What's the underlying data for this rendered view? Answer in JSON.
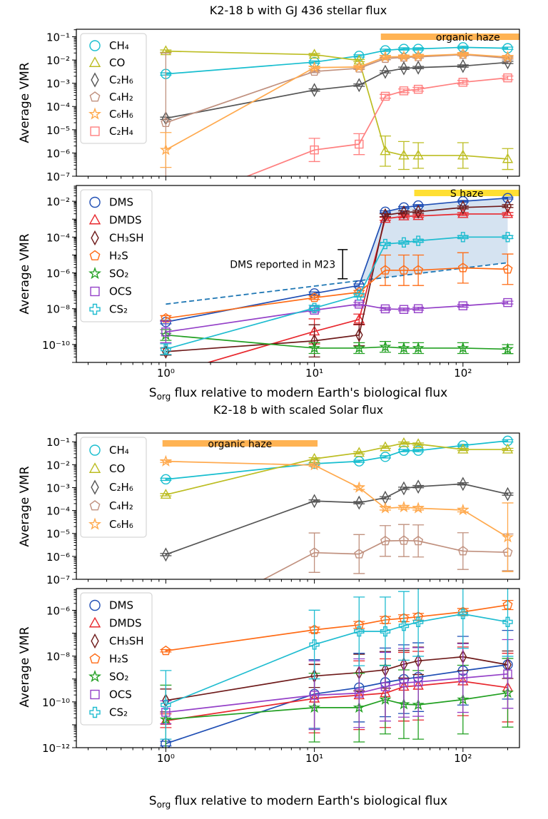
{
  "chart_data": [
    {
      "type": "line",
      "title": "K2-18 b with GJ 436 stellar flux",
      "ylabel": "Average VMR",
      "xscale": "log",
      "yscale": "log",
      "xlim": [
        0.25,
        240
      ],
      "ylim": [
        1e-07,
        0.21
      ],
      "xticks": [
        "10⁰",
        "10¹",
        "10²"
      ],
      "yticks": [
        "10⁻¹",
        "10⁻²",
        "10⁻³",
        "10⁻⁴",
        "10⁻⁵",
        "10⁻⁶",
        "10⁻⁷"
      ],
      "legend": "upper left",
      "x": [
        1,
        10,
        20,
        30,
        40,
        50,
        100,
        200
      ],
      "bands": [
        {
          "label": "organic haze",
          "x": [
            28,
            240
          ],
          "color": "#ffa028"
        }
      ],
      "series": [
        {
          "name": "CH₄",
          "color": "#17becf",
          "marker": "circle",
          "values": [
            0.0025,
            0.0081,
            0.015,
            0.026,
            0.03,
            0.03,
            0.035,
            0.032
          ],
          "yerr_dex": [
            0.05,
            0.05,
            0.05,
            0.05,
            0.05,
            0.05,
            0.05,
            0.05
          ]
        },
        {
          "name": "CO",
          "color": "#bcbd22",
          "marker": "triangle",
          "values": [
            0.024,
            0.017,
            0.0095,
            1.2e-06,
            7.8e-07,
            7.8e-07,
            7.8e-07,
            5.5e-07
          ],
          "yerr_dex": [
            0.05,
            0.05,
            0.05,
            0.65,
            0.6,
            0.55,
            0.55,
            0.45
          ]
        },
        {
          "name": "C₂H₆",
          "color": "#555555",
          "marker": "diamond",
          "values": [
            3.1e-05,
            0.00051,
            0.00083,
            0.0031,
            0.0044,
            0.0047,
            0.0055,
            0.0079
          ],
          "yerr_dex": [
            0.05,
            0.05,
            0.05,
            0.05,
            0.05,
            0.05,
            0.05,
            0.05
          ]
        },
        {
          "name": "C₄H₂",
          "color": "#c0907e",
          "marker": "pentagon",
          "values": [
            2e-05,
            0.0032,
            0.0044,
            0.0115,
            0.013,
            0.0135,
            0.017,
            0.012
          ],
          "yerr_dex": [
            3,
            0.05,
            0.05,
            0.05,
            0.05,
            0.05,
            0.05,
            0.05
          ]
        },
        {
          "name": "C₆H₆",
          "color": "#ffa94d",
          "marker": "star",
          "values": [
            1.35e-06,
            0.0047,
            0.005,
            0.0135,
            0.014,
            0.015,
            0.018,
            0.0135
          ],
          "yerr_dex": [
            0.75,
            0.05,
            0.05,
            0.05,
            0.05,
            0.05,
            0.05,
            0.05
          ]
        },
        {
          "name": "C₂H₄",
          "color": "#ff7f7f",
          "marker": "square",
          "values": [
            4.2e-09,
            1.35e-06,
            2.4e-06,
            0.000275,
            0.00047,
            0.00055,
            0.0011,
            0.0017
          ],
          "yerr_dex": [
            0,
            0.5,
            0.45,
            0.08,
            0.08,
            0.08,
            0.08,
            0.08
          ]
        }
      ]
    },
    {
      "type": "line",
      "ylabel": "Average VMR",
      "xlabel": {
        "symbol": "S",
        "subscript": "org",
        "text": " flux relative to modern Earth's biological flux"
      },
      "xscale": "log",
      "yscale": "log",
      "xlim": [
        0.25,
        240
      ],
      "ylim": [
        1e-10,
        0.76
      ],
      "xticks": [
        "10⁰",
        "10¹",
        "10²"
      ],
      "yticks": [
        "10⁻²",
        "10⁻⁴",
        "10⁻⁶",
        "10⁻⁸",
        "10⁻¹⁰"
      ],
      "legend": "upper left",
      "x": [
        1,
        10,
        20,
        30,
        40,
        50,
        100,
        200
      ],
      "bands": [
        {
          "label": "S haze",
          "x": [
            47,
            240
          ],
          "color": "#ffd700"
        }
      ],
      "reference_line": {
        "label": "DMS reported in M23",
        "x": [
          1,
          200
        ],
        "values": [
          1.8e-07,
          3.7e-05
        ],
        "color": "#1f77b4",
        "style": "dashed",
        "bracket_x": 15.5,
        "bracket_range": [
          0.0002,
          4.7e-06
        ]
      },
      "shaded_region_color": "#b9d1e8",
      "series": [
        {
          "name": "DMS",
          "color": "#1f4eb4",
          "marker": "circle",
          "values": [
            1.8e-08,
            7.1e-07,
            2e-06,
            0.026,
            0.045,
            0.058,
            0.1,
            0.15
          ],
          "yerr_dex": [
            0.1,
            0.08,
            0.08,
            0.05,
            0.05,
            0.05,
            0.05,
            0.05
          ]
        },
        {
          "name": "DMDS",
          "color": "#e8282e",
          "marker": "triangle",
          "values": [
            2e-11,
            5.4e-09,
            2.5e-08,
            0.0105,
            0.0145,
            0.015,
            0.0195,
            0.0195
          ],
          "yerr_dex": [
            0,
            0.7,
            0.3,
            0.08,
            0.08,
            0.08,
            0.08,
            0.08
          ]
        },
        {
          "name": "CH₃SH",
          "color": "#6e1a1a",
          "marker": "diamond",
          "values": [
            4e-10,
            1.6e-09,
            3.4e-09,
            0.0166,
            0.024,
            0.026,
            0.045,
            0.054
          ],
          "yerr_dex": [
            0.2,
            0.9,
            0.6,
            0.08,
            0.08,
            0.08,
            0.08,
            0.08
          ]
        },
        {
          "name": "H₂S",
          "color": "#ff6b15",
          "marker": "pentagon",
          "values": [
            2.9e-08,
            4.1e-07,
            8.3e-07,
            1.4e-05,
            1.4e-05,
            1.4e-05,
            1.9e-05,
            1.6e-05
          ],
          "yerr_dex": [
            0.15,
            0.1,
            0.1,
            0.85,
            0.85,
            0.85,
            0.85,
            0.85
          ]
        },
        {
          "name": "SO₂",
          "color": "#22a022",
          "marker": "star",
          "values": [
            3.4e-09,
            6.3e-10,
            6.3e-10,
            7.4e-10,
            6.3e-10,
            6.3e-10,
            6.3e-10,
            5.5e-10
          ],
          "yerr_dex": [
            0.3,
            0.3,
            0.3,
            0.3,
            0.3,
            0.3,
            0.3,
            0.25
          ]
        },
        {
          "name": "OCS",
          "color": "#9440c8",
          "marker": "square",
          "values": [
            5e-09,
            8.3e-08,
            1.8e-07,
            9.8e-08,
            9.1e-08,
            1e-07,
            1.45e-07,
            2.2e-07
          ],
          "yerr_dex": [
            0.6,
            0.1,
            0.1,
            0.08,
            0.08,
            0.08,
            0.08,
            0.08
          ]
        },
        {
          "name": "CS₂",
          "color": "#1fbcd0",
          "marker": "plus",
          "values": [
            5.5e-10,
            1.1e-07,
            5.6e-07,
            0.00041,
            0.0005,
            0.00062,
            0.001,
            0.001
          ],
          "yerr_dex": [
            0.3,
            0.15,
            0.1,
            0.08,
            0.08,
            0.08,
            0.08,
            0.08
          ]
        }
      ]
    },
    {
      "type": "line",
      "title": "K2-18 b with scaled Solar flux",
      "ylabel": "Average VMR",
      "xscale": "log",
      "yscale": "log",
      "xlim": [
        0.25,
        240
      ],
      "ylim": [
        1e-07,
        0.24
      ],
      "xticks": [
        "10⁰",
        "10¹",
        "10²"
      ],
      "yticks": [
        "10⁻¹",
        "10⁻²",
        "10⁻³",
        "10⁻⁴",
        "10⁻⁵",
        "10⁻⁶",
        "10⁻⁷"
      ],
      "legend": "upper left",
      "x": [
        1,
        10,
        20,
        30,
        40,
        50,
        100,
        200
      ],
      "bands": [
        {
          "label": "organic haze",
          "x": [
            0.95,
            10.5
          ],
          "color": "#ffa028"
        }
      ],
      "series": [
        {
          "name": "CH₄",
          "color": "#17becf",
          "marker": "circle",
          "values": [
            0.0023,
            0.011,
            0.014,
            0.022,
            0.041,
            0.041,
            0.069,
            0.11
          ],
          "yerr_dex": [
            0.05,
            0.05,
            0.05,
            0.05,
            0.05,
            0.05,
            0.05,
            0.05
          ]
        },
        {
          "name": "CO",
          "color": "#bcbd22",
          "marker": "triangle",
          "values": [
            0.00049,
            0.018,
            0.033,
            0.058,
            0.087,
            0.079,
            0.046,
            0.046
          ],
          "yerr_dex": [
            0.05,
            0.05,
            0.05,
            0.05,
            0.05,
            0.05,
            0.05,
            0.05
          ]
        },
        {
          "name": "C₂H₆",
          "color": "#555555",
          "marker": "diamond",
          "values": [
            1.2e-06,
            0.00026,
            0.00022,
            0.00036,
            0.00093,
            0.0011,
            0.00145,
            0.00052
          ],
          "yerr_dex": [
            0.05,
            0.05,
            0.05,
            0.05,
            0.05,
            0.05,
            0.05,
            0.05
          ]
        },
        {
          "name": "C₄H₂",
          "color": "#c0907e",
          "marker": "pentagon",
          "values": [
            5.6e-10,
            1.45e-06,
            1.26e-06,
            4.7e-06,
            4.9e-06,
            4.7e-06,
            1.7e-06,
            1.5e-06
          ],
          "yerr_dex": [
            0,
            0.86,
            0.85,
            0.67,
            0.7,
            0.7,
            0.8,
            0.8
          ]
        },
        {
          "name": "C₆H₆",
          "color": "#ffa94d",
          "marker": "star",
          "values": [
            0.014,
            0.0095,
            0.001,
            0.000126,
            0.00014,
            0.000126,
            0.000105,
            6.8e-06
          ],
          "yerr_dex": [
            0.05,
            0.05,
            0.08,
            0.08,
            0.08,
            0.08,
            0.08,
            1.5
          ]
        }
      ]
    },
    {
      "type": "line",
      "ylabel": "Average VMR",
      "xlabel": {
        "symbol": "S",
        "subscript": "org",
        "text": " flux relative to modern Earth's biological flux"
      },
      "xscale": "log",
      "yscale": "log",
      "xlim": [
        0.25,
        240
      ],
      "ylim": [
        1e-12,
        8.9e-06
      ],
      "xticks": [
        "10⁰",
        "10¹",
        "10²"
      ],
      "yticks": [
        "10⁻⁶",
        "10⁻⁸",
        "10⁻¹⁰",
        "10⁻¹²"
      ],
      "legend": "upper left",
      "x": [
        1,
        10,
        20,
        30,
        40,
        50,
        100,
        200
      ],
      "series": [
        {
          "name": "DMS",
          "color": "#1f4eb4",
          "marker": "circle",
          "values": [
            1.5e-12,
            2.2e-10,
            4.2e-10,
            7.1e-10,
            9.8e-10,
            1.2e-09,
            2.3e-09,
            4.2e-09
          ],
          "yerr_dex": [
            0.1,
            1.5,
            1.5,
            1.5,
            1.5,
            1.5,
            1.5,
            1.5
          ]
        },
        {
          "name": "DMDS",
          "color": "#e8282e",
          "marker": "triangle",
          "values": [
            1.5e-11,
            1.4e-10,
            1.95e-10,
            2.4e-10,
            4.6e-10,
            5.1e-10,
            7.9e-10,
            4.2e-10
          ],
          "yerr_dex": [
            0.3,
            1.5,
            1.5,
            1.5,
            1.5,
            1.5,
            1.5,
            1.5
          ]
        },
        {
          "name": "CH₃SH",
          "color": "#6e1a1a",
          "marker": "diamond",
          "values": [
            1.15e-10,
            1.35e-09,
            1.9e-09,
            2.5e-09,
            4.4e-09,
            6.2e-09,
            9.3e-09,
            4.2e-09
          ],
          "yerr_dex": [
            0.5,
            0.5,
            0.8,
            0.8,
            0.6,
            0.6,
            0.6,
            0.6
          ]
        },
        {
          "name": "H₂S",
          "color": "#ff6b15",
          "marker": "pentagon",
          "values": [
            1.7e-08,
            1.4e-07,
            2.3e-07,
            3.8e-07,
            4.5e-07,
            5.2e-07,
            8.5e-07,
            1.7e-06
          ],
          "yerr_dex": [
            0.05,
            0.12,
            0.15,
            0.15,
            0.15,
            0.15,
            0.15,
            0.2
          ]
        },
        {
          "name": "SO₂",
          "color": "#22a022",
          "marker": "star",
          "values": [
            1.7e-11,
            5.6e-11,
            5.6e-11,
            1.26e-10,
            7.9e-11,
            7.4e-11,
            1.26e-10,
            2.5e-10
          ],
          "yerr_dex": [
            1.5,
            1.5,
            1.5,
            1.5,
            1.5,
            1.5,
            1.5,
            1.5
          ]
        },
        {
          "name": "OCS",
          "color": "#9440c8",
          "marker": "square",
          "values": [
            3.5e-11,
            1.95e-10,
            2.4e-10,
            4.6e-10,
            6.8e-10,
            7.4e-10,
            1.1e-09,
            1.66e-09
          ],
          "yerr_dex": [
            0.5,
            1.5,
            1.5,
            1.5,
            1.5,
            1.5,
            1.5,
            1.5
          ]
        },
        {
          "name": "CS₂",
          "color": "#1fbcd0",
          "marker": "plus",
          "values": [
            7.4e-11,
            3.2e-08,
            1.2e-07,
            1.2e-07,
            2.1e-07,
            3.1e-07,
            6.9e-07,
            3.1e-07
          ],
          "yerr_dex": [
            1.5,
            1.5,
            1.5,
            1.5,
            1.5,
            1.5,
            1.5,
            1.5
          ]
        }
      ]
    }
  ]
}
